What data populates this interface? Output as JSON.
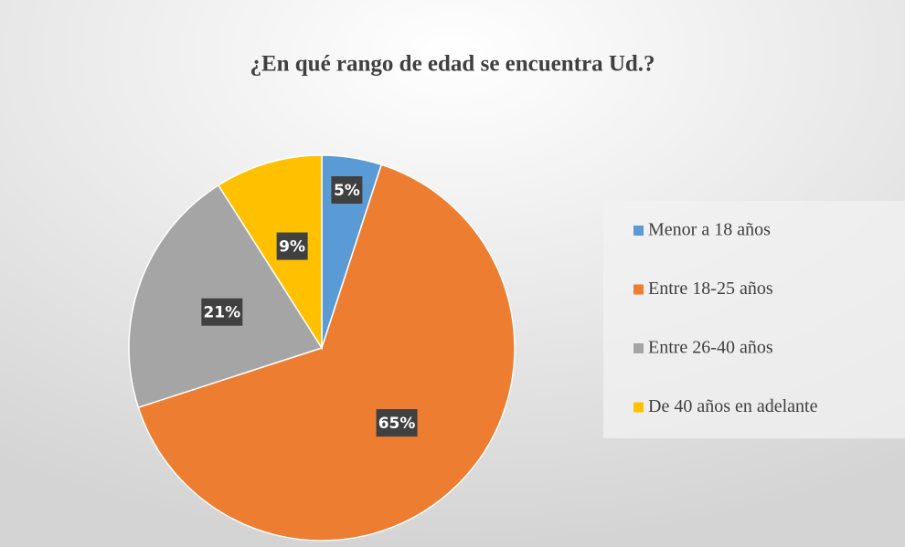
{
  "chart_data": {
    "type": "pie",
    "title": "¿En qué rango de edad se encuentra Ud.?",
    "categories": [
      "Menor a 18 años",
      "Entre 18-25 años",
      "Entre 26-40 años",
      "De 40 años en adelante"
    ],
    "values": [
      5,
      65,
      21,
      9
    ],
    "value_labels": [
      "5%",
      "65%",
      "21%",
      "9%"
    ],
    "colors": [
      "#5b9bd5",
      "#ed7d31",
      "#a5a5a5",
      "#ffc000"
    ],
    "legend": "right"
  }
}
